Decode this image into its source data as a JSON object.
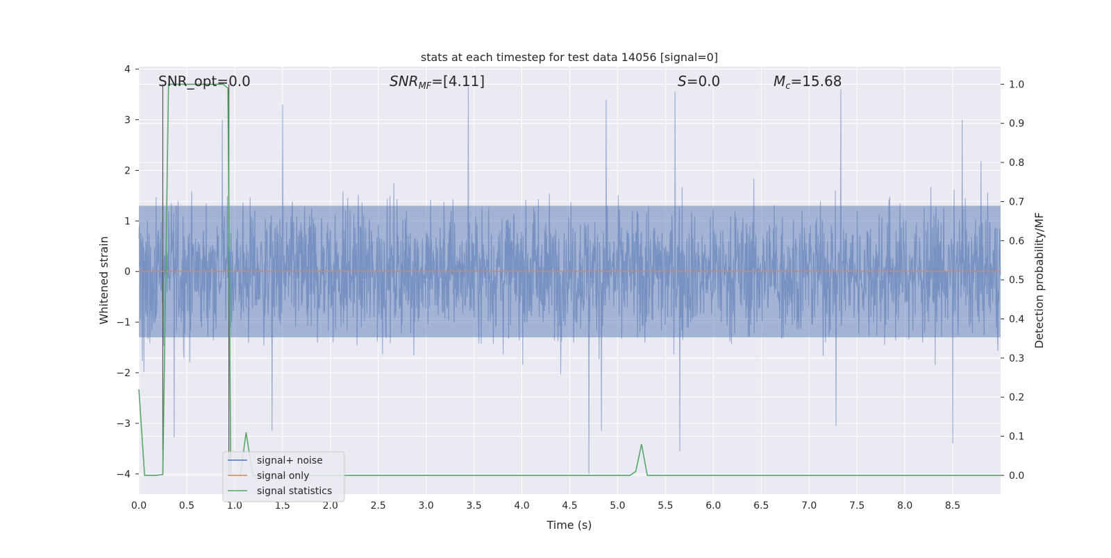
{
  "chart_data": {
    "type": "line",
    "title": "stats at each timestep for test data 14056 [signal=0]",
    "xlabel": "Time (s)",
    "ylabel_left": "Whitened strain",
    "ylabel_right": "Detection probability/MF",
    "xlim": [
      0.0,
      9.0
    ],
    "ylim_left": [
      -4.4,
      4.05
    ],
    "ylim_right": [
      -0.048,
      1.045
    ],
    "x_ticks": [
      "0.0",
      "0.5",
      "1.0",
      "1.5",
      "2.0",
      "2.5",
      "3.0",
      "3.5",
      "4.0",
      "4.5",
      "5.0",
      "5.5",
      "6.0",
      "6.5",
      "7.0",
      "7.5",
      "8.0",
      "8.5"
    ],
    "y_left_ticks": [
      "4",
      "3",
      "2",
      "1",
      "0",
      "−1",
      "−2",
      "−3",
      "−4"
    ],
    "y_right_ticks": [
      "1.0",
      "0.9",
      "0.8",
      "0.7",
      "0.6",
      "0.5",
      "0.4",
      "0.3",
      "0.2",
      "0.1",
      "0.0"
    ],
    "annotations": {
      "snr_opt": "SNR_opt=0.0",
      "snr_mf_main": "SNR",
      "snr_mf_sub": "MF",
      "snr_mf_value": "=[4.11]",
      "s_main": "S",
      "s_value": "=0.0",
      "mc_main": "M",
      "mc_sub": "c",
      "mc_value": "=15.68"
    },
    "grid": true,
    "legend_position": "lower-left",
    "colors": {
      "background": "#eaeaf2",
      "signal_noise": "#4c72b0",
      "signal_only": "#dd8452",
      "signal_statistics": "#55a868",
      "grid": "#ffffff"
    },
    "series": [
      {
        "name": "signal+ noise",
        "axis": "left",
        "style": "noise",
        "envelope_upper_typical": 2.0,
        "envelope_lower_typical": -2.0,
        "peaks": [
          {
            "x": 0.87,
            "y": 3.0
          },
          {
            "x": 1.5,
            "y": 3.3
          },
          {
            "x": 3.44,
            "y": 3.65
          },
          {
            "x": 4.88,
            "y": 3.4
          },
          {
            "x": 5.6,
            "y": 3.55
          },
          {
            "x": 7.33,
            "y": 3.6
          },
          {
            "x": 8.6,
            "y": 3.0
          },
          {
            "x": 0.37,
            "y": -3.28
          },
          {
            "x": 4.7,
            "y": -4.0
          },
          {
            "x": 4.83,
            "y": -3.15
          },
          {
            "x": 5.65,
            "y": -3.55
          },
          {
            "x": 7.28,
            "y": -3.05
          },
          {
            "x": 8.5,
            "y": -3.4
          },
          {
            "x": 1.39,
            "y": -3.15
          }
        ]
      },
      {
        "name": "signal only",
        "axis": "left",
        "x": [
          0.0,
          9.0
        ],
        "y": [
          0.0,
          0.0
        ]
      },
      {
        "name": "signal statistics",
        "axis": "right",
        "x": [
          0.0,
          0.06,
          0.18,
          0.25,
          0.31,
          0.44,
          0.69,
          0.88,
          0.93,
          0.96,
          1.06,
          1.12,
          1.19,
          1.25,
          5.13,
          5.19,
          5.25,
          5.31,
          9.0
        ],
        "y": [
          0.22,
          0.0,
          0.0,
          0.002,
          1.0,
          1.0,
          1.0,
          1.0,
          0.99,
          0.0,
          0.0,
          0.11,
          0.0,
          0.0,
          0.0,
          0.01,
          0.08,
          0.0,
          0.0
        ]
      }
    ],
    "vertical_markers": [
      {
        "x": 0.25,
        "axis": "left",
        "y_range": [
          -4.0,
          3.7
        ]
      },
      {
        "x": 0.94,
        "axis": "left",
        "y_range": [
          -4.0,
          3.7
        ]
      }
    ]
  }
}
